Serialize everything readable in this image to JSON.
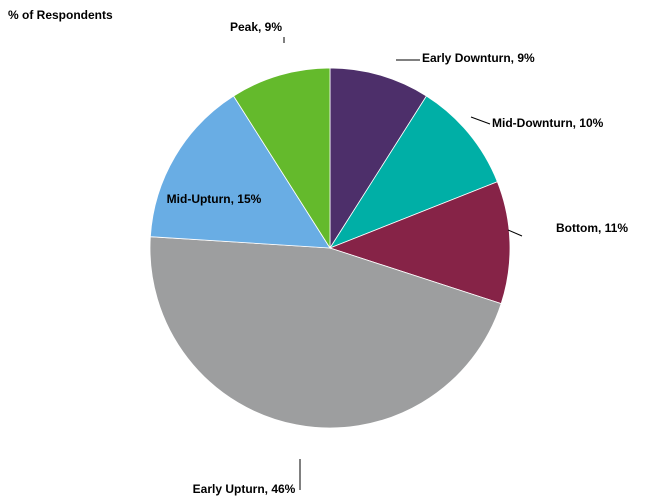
{
  "chart_data": {
    "type": "pie",
    "title": "% of Respondents",
    "start_angle_deg": 0,
    "direction": "clockwise",
    "slices": [
      {
        "label": "Early Downturn, 9%",
        "value": 9,
        "color": "#4d2f6a"
      },
      {
        "label": "Mid-Downturn, 10%",
        "value": 10,
        "color": "#00afa6"
      },
      {
        "label": "Bottom, 11%",
        "value": 11,
        "color": "#862347"
      },
      {
        "label": "Early Upturn, 46%",
        "value": 46,
        "color": "#9d9e9f"
      },
      {
        "label": "Mid-Upturn, 15%",
        "value": 15,
        "color": "#69ade4"
      },
      {
        "label": "Peak, 9%",
        "value": 9,
        "color": "#64ba2c"
      }
    ]
  }
}
